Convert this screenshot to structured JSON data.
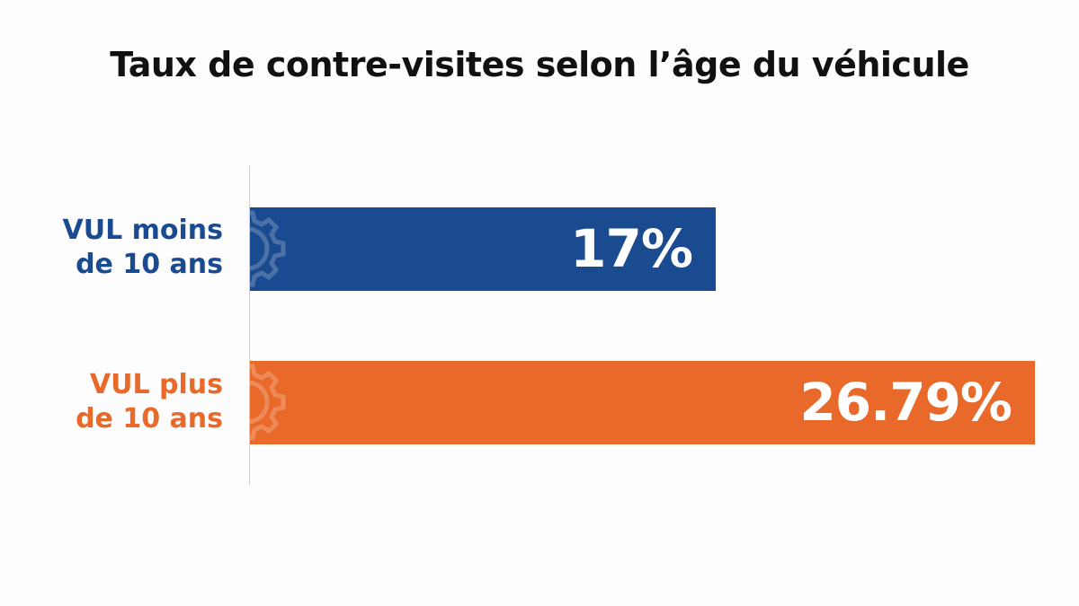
{
  "chart_data": {
    "type": "bar",
    "orientation": "horizontal",
    "title": "Taux de contre-visites selon l’âge du véhicule",
    "categories": [
      {
        "line1": "VUL moins",
        "line2": "de 10 ans"
      },
      {
        "line1": "VUL plus",
        "line2": "de 10 ans"
      }
    ],
    "values": [
      17,
      26.79
    ],
    "value_labels": [
      "17%",
      "26.79%"
    ],
    "colors": [
      "#1a4a8f",
      "#e8692a"
    ],
    "xlim": [
      0,
      26.79
    ],
    "unit": "%",
    "grid": false,
    "legend": "none",
    "decoration_icon": "gear-icon"
  }
}
